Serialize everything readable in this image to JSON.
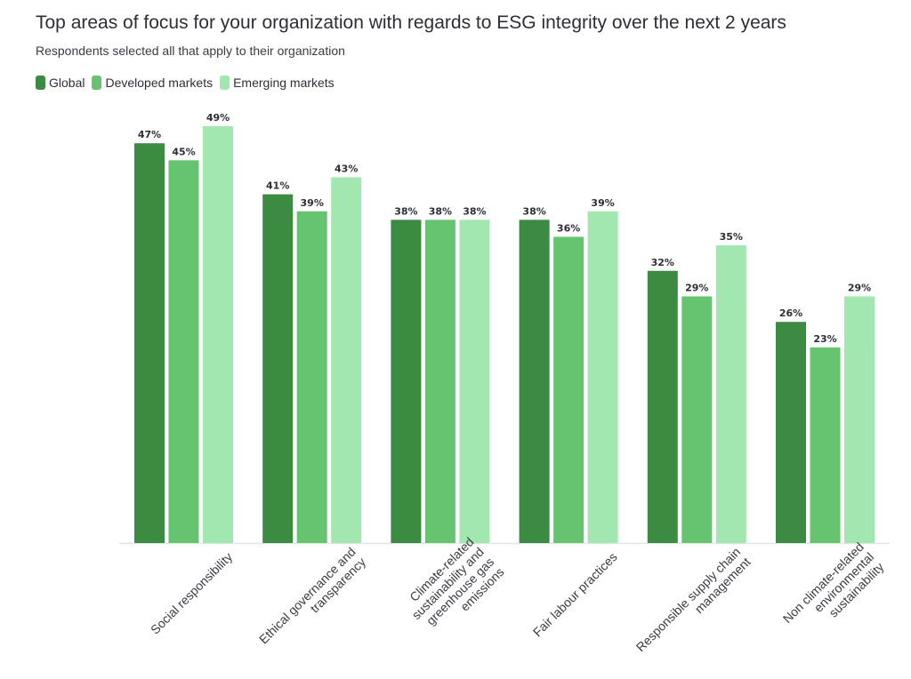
{
  "chart_data": {
    "type": "bar",
    "title": "Top areas of focus for your organization with regards to ESG integrity over the next 2 years",
    "subtitle": "Respondents selected all that apply to their organization",
    "categories": [
      "Social responsibility",
      "Ethical governance and transparency",
      "Climate-related sustainability and greenhouse gas emissions",
      "Fair labour practices",
      "Responsible supply chain management",
      "Non climate-related environmental sustainability"
    ],
    "category_lines": [
      [
        "Social responsibility"
      ],
      [
        "Ethical governance and",
        "transparency"
      ],
      [
        "Climate-related",
        "sustainability and",
        "greenhouse gas",
        "emissions"
      ],
      [
        "Fair labour practices"
      ],
      [
        "Responsible supply chain",
        "management"
      ],
      [
        "Non climate-related",
        "environmental",
        "sustainability"
      ]
    ],
    "series": [
      {
        "name": "Global",
        "color": "#3d8a43",
        "values": [
          47,
          41,
          38,
          38,
          32,
          26
        ]
      },
      {
        "name": "Developed markets",
        "color": "#66c470",
        "values": [
          45,
          39,
          38,
          36,
          29,
          23
        ]
      },
      {
        "name": "Emerging markets",
        "color": "#a3e7b0",
        "values": [
          49,
          43,
          38,
          39,
          35,
          29
        ]
      }
    ],
    "value_suffix": "%",
    "ylim": [
      0,
      50
    ],
    "legend_position": "top-left",
    "grid": false
  }
}
